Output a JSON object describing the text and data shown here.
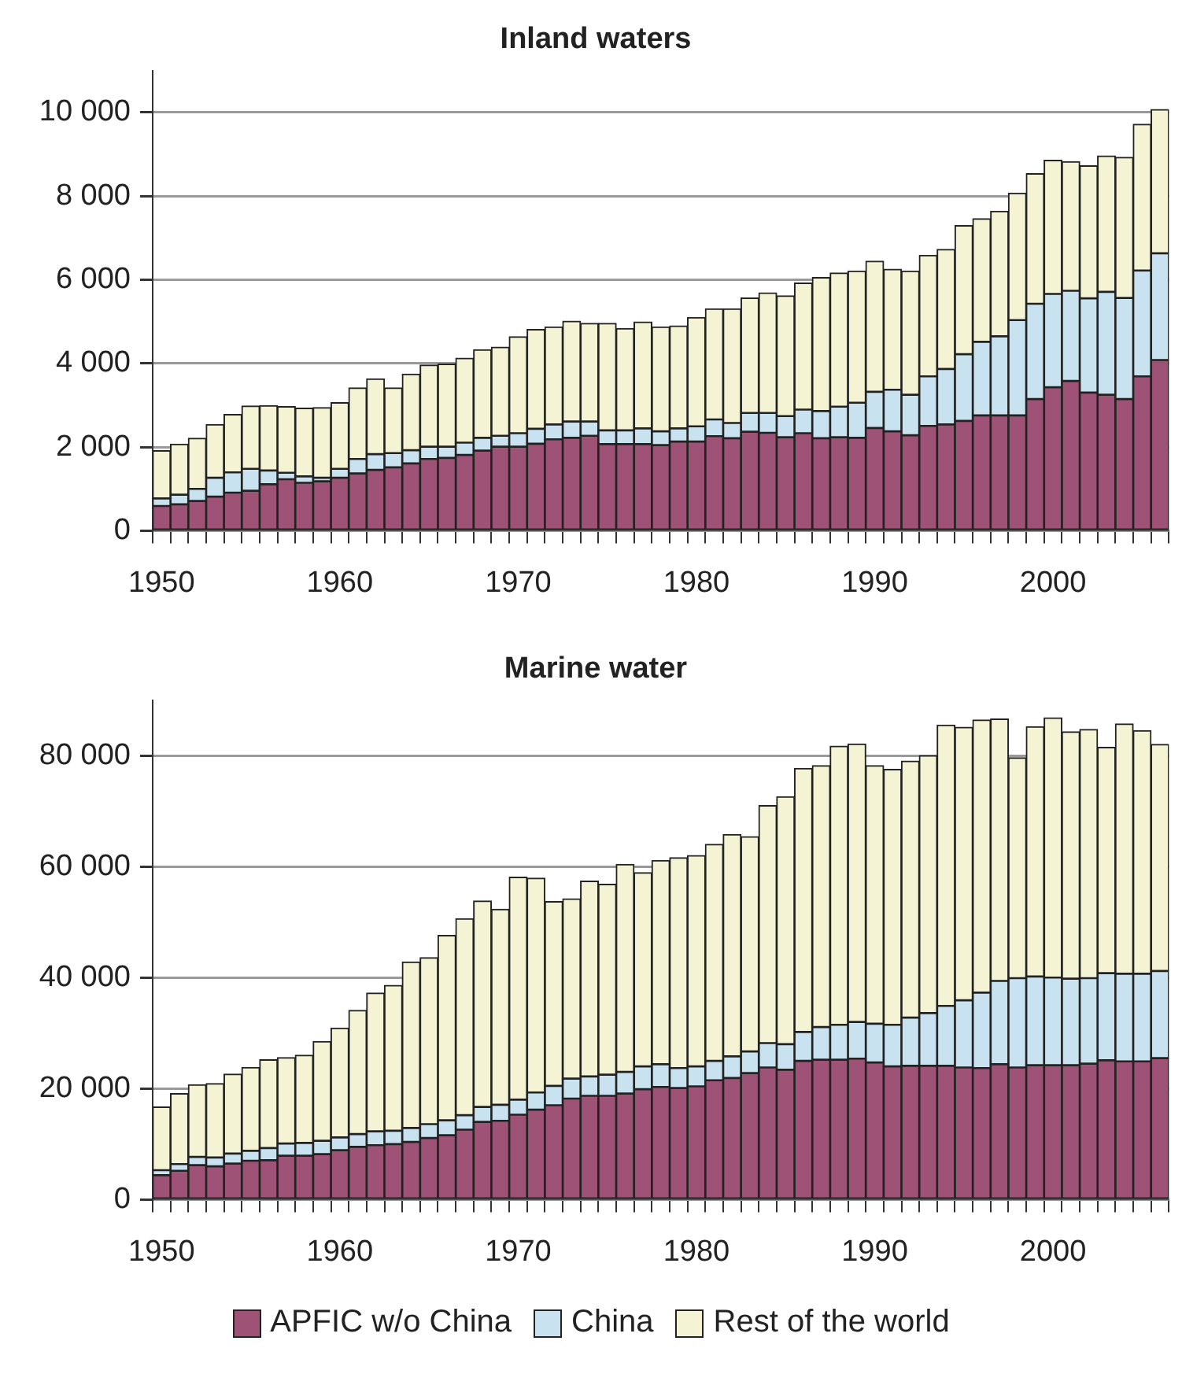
{
  "chart_data": [
    {
      "type": "bar",
      "title": "Inland waters",
      "stacked": true,
      "grid": "y",
      "legend": false,
      "categories": [
        "1950",
        null,
        null,
        null,
        null,
        null,
        null,
        null,
        null,
        null,
        "1960",
        null,
        null,
        null,
        null,
        null,
        null,
        null,
        null,
        null,
        "1970",
        null,
        null,
        null,
        null,
        null,
        null,
        null,
        null,
        null,
        "1980",
        null,
        null,
        null,
        null,
        null,
        null,
        null,
        null,
        null,
        "1990",
        null,
        null,
        null,
        null,
        null,
        null,
        null,
        null,
        null,
        "2000",
        null,
        null,
        null,
        null,
        null,
        null
      ],
      "ylim": [
        0,
        11000
      ],
      "yticks": [
        0,
        {
          "value": 2000,
          "label": "2 000"
        },
        {
          "value": 4000,
          "label": "4 000"
        },
        {
          "value": 6000,
          "label": "6 000"
        },
        {
          "value": 8000,
          "label": "8 000"
        },
        {
          "value": 10000,
          "label": "10 000"
        }
      ],
      "series": [
        {
          "color": "#9e5276",
          "values": [
            590,
            630,
            710,
            815,
            910,
            955,
            1110,
            1230,
            1145,
            1180,
            1265,
            1370,
            1455,
            1515,
            1610,
            1715,
            1740,
            1810,
            1915,
            2010,
            2010,
            2080,
            2185,
            2220,
            2270,
            2070,
            2070,
            2070,
            2045,
            2130,
            2130,
            2260,
            2210,
            2365,
            2340,
            2235,
            2330,
            2210,
            2235,
            2220,
            2455,
            2375,
            2280,
            2505,
            2540,
            2625,
            2755,
            2755,
            2755,
            3145,
            3430,
            3580,
            3300,
            3250,
            3145,
            3690,
            4080
          ]
        },
        {
          "color": "#c9e2f0",
          "values": [
            180,
            230,
            290,
            450,
            485,
            525,
            330,
            155,
            155,
            85,
            215,
            345,
            375,
            340,
            315,
            295,
            270,
            295,
            305,
            260,
            320,
            355,
            355,
            390,
            340,
            330,
            330,
            375,
            330,
            315,
            365,
            400,
            365,
            450,
            475,
            505,
            565,
            650,
            730,
            840,
            865,
            995,
            970,
            1185,
            1325,
            1595,
            1760,
            1890,
            2280,
            2280,
            2230,
            2155,
            2255,
            2460,
            2420,
            2530,
            2550
          ]
        },
        {
          "color": "#f4f3d3",
          "values": [
            1145,
            1210,
            1210,
            1275,
            1385,
            1500,
            1550,
            1580,
            1630,
            1680,
            1580,
            1700,
            1800,
            1560,
            1820,
            1950,
            1975,
            2020,
            2105,
            2115,
            2305,
            2375,
            2330,
            2400,
            2345,
            2555,
            2435,
            2545,
            2495,
            2450,
            2600,
            2645,
            2730,
            2750,
            2870,
            2875,
            3025,
            3190,
            3195,
            3145,
            3120,
            2880,
            2955,
            2895,
            2860,
            3075,
            2945,
            2990,
            3035,
            3110,
            3195,
            3085,
            3170,
            3250,
            3360,
            3495,
            3440
          ]
        }
      ]
    },
    {
      "type": "bar",
      "title": "Marine water",
      "stacked": true,
      "grid": "y",
      "legend": "bottom",
      "categories": [
        "1950",
        null,
        null,
        null,
        null,
        null,
        null,
        null,
        null,
        null,
        "1960",
        null,
        null,
        null,
        null,
        null,
        null,
        null,
        null,
        null,
        "1970",
        null,
        null,
        null,
        null,
        null,
        null,
        null,
        null,
        null,
        "1980",
        null,
        null,
        null,
        null,
        null,
        null,
        null,
        null,
        null,
        "1990",
        null,
        null,
        null,
        null,
        null,
        null,
        null,
        null,
        null,
        "2000",
        null,
        null,
        null,
        null,
        null,
        null
      ],
      "ylim": [
        0,
        90000
      ],
      "yticks": [
        0,
        {
          "value": 20000,
          "label": "20 000"
        },
        {
          "value": 40000,
          "label": "40 000"
        },
        {
          "value": 60000,
          "label": "60 000"
        },
        {
          "value": 80000,
          "label": "80 000"
        }
      ],
      "series": [
        {
          "name": "APFIC w/o China",
          "color": "#9e5276",
          "values": [
            4400,
            5200,
            6200,
            6000,
            6500,
            7000,
            7100,
            7900,
            7900,
            8200,
            8900,
            9500,
            9800,
            10000,
            10400,
            11100,
            11600,
            12600,
            14000,
            14200,
            15300,
            16200,
            17000,
            18200,
            18700,
            18700,
            19100,
            19900,
            20300,
            20100,
            20400,
            21500,
            21900,
            22800,
            23800,
            23400,
            25000,
            25200,
            25200,
            25400,
            24700,
            24000,
            24100,
            24100,
            24100,
            23800,
            23700,
            24400,
            23800,
            24200,
            24200,
            24200,
            24500,
            25100,
            24900,
            24900,
            25500
          ]
        },
        {
          "name": "China",
          "color": "#c9e2f0",
          "values": [
            900,
            1200,
            1500,
            1600,
            1800,
            1800,
            2200,
            2200,
            2300,
            2400,
            2300,
            2300,
            2500,
            2400,
            2500,
            2500,
            2700,
            2600,
            2700,
            2900,
            2700,
            3100,
            3500,
            3600,
            3500,
            3800,
            3900,
            4100,
            4100,
            3600,
            3600,
            3500,
            3900,
            3900,
            4400,
            4600,
            5200,
            5900,
            6300,
            6600,
            7000,
            7500,
            8700,
            9500,
            10800,
            12100,
            13600,
            15000,
            16100,
            16000,
            15800,
            15600,
            15400,
            15700,
            15800,
            15800,
            15700
          ]
        },
        {
          "name": "Rest of the world",
          "color": "#f4f3d3",
          "values": [
            11400,
            12700,
            13000,
            13300,
            14300,
            15000,
            15900,
            15500,
            15800,
            17900,
            19700,
            22300,
            24900,
            26200,
            29900,
            30000,
            33300,
            35400,
            37100,
            35200,
            40100,
            38600,
            33200,
            32400,
            35200,
            34300,
            37400,
            34900,
            36700,
            37900,
            38000,
            39000,
            40000,
            38700,
            42800,
            44600,
            47500,
            47100,
            50200,
            50100,
            46500,
            46000,
            46200,
            46400,
            50600,
            49200,
            49100,
            47200,
            39700,
            45000,
            46800,
            44500,
            44800,
            40700,
            45000,
            43800,
            40800
          ]
        }
      ]
    }
  ]
}
